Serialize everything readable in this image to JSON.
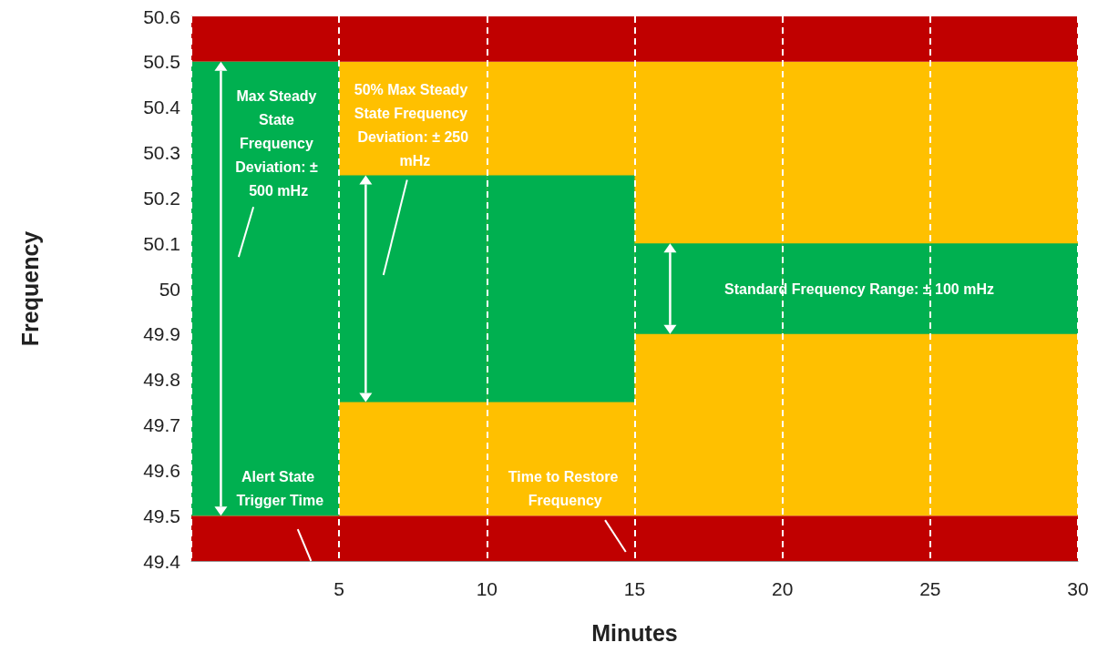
{
  "chart_data": {
    "type": "bar",
    "xlabel": "Minutes",
    "ylabel": "Frequency",
    "x": [
      2.5,
      7.5,
      12.5,
      17.5,
      22.5,
      27.5
    ],
    "base": [
      49.5,
      49.75,
      49.75,
      49.9,
      49.9,
      49.9
    ],
    "values": [
      1,
      0.5,
      0.5,
      0.2,
      0.2,
      0.2
    ],
    "color": "#00b050",
    "bands": [
      {
        "axis": "y",
        "from": 49.4,
        "to": 49.5,
        "color": "#c00000"
      },
      {
        "axis": "y",
        "from": 49.5,
        "to": 50.5,
        "color": "#ffc000"
      },
      {
        "axis": "y",
        "from": 50.5,
        "to": 50.6,
        "color": "#c00000"
      }
    ],
    "xlim": [
      0,
      30
    ],
    "xticks": [
      5,
      10,
      15,
      20,
      25,
      30
    ],
    "ylim": [
      49.4,
      50.6
    ],
    "yticks": [
      49.4,
      49.5,
      49.6,
      49.7,
      49.8,
      49.9,
      50,
      50.1,
      50.2,
      50.3,
      50.4,
      50.5,
      50.6
    ],
    "grid": "x",
    "annotations": [
      "Max Steady State Frequency Deviation: ± 500 mHz",
      "50% Max Steady State Frequency Deviation: ± 250 mHz",
      "Standard Frequency Range: ± 100 mHz",
      "Alert State Trigger Time",
      "Time to Restore Frequency"
    ]
  }
}
